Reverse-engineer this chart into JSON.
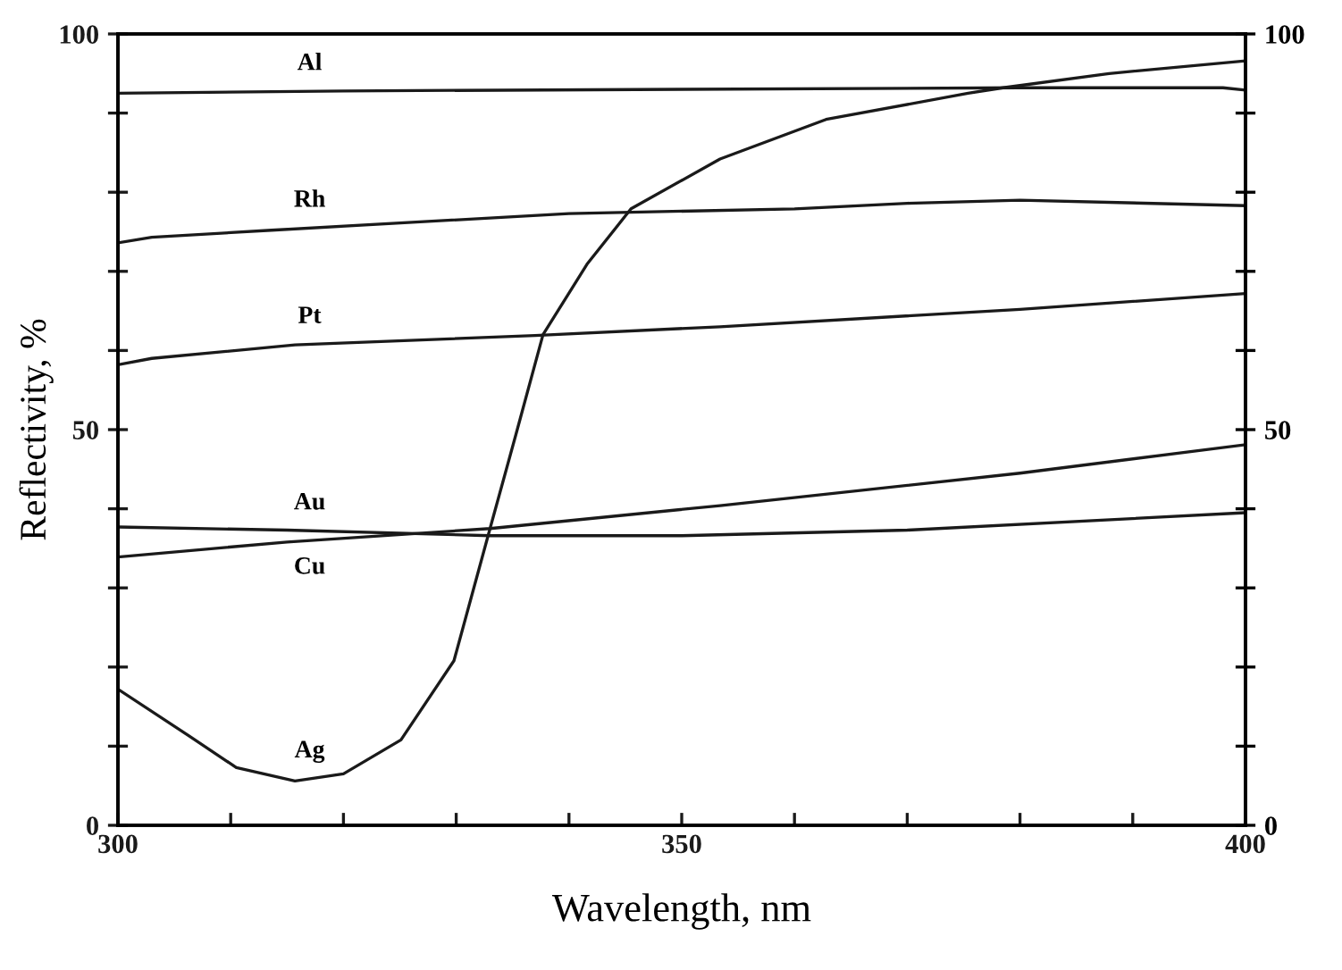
{
  "chart_data": {
    "type": "line",
    "xlabel": "Wavelength, nm",
    "ylabel": "Reflectivity, %",
    "xlim": [
      300,
      400
    ],
    "ylim": [
      0,
      100
    ],
    "y2lim": [
      0,
      100
    ],
    "xticks": [
      300,
      {
        "value": 310,
        "label": null
      },
      {
        "value": 320,
        "label": null
      },
      {
        "value": 330,
        "label": null
      },
      {
        "value": 340,
        "label": null
      },
      350,
      {
        "value": 360,
        "label": null
      },
      {
        "value": 370,
        "label": null
      },
      {
        "value": 380,
        "label": null
      },
      {
        "value": 390,
        "label": null
      },
      {
        "value": 400,
        "label": "400"
      }
    ],
    "yticks": [
      0,
      {
        "value": 10,
        "label": null
      },
      {
        "value": 20,
        "label": null
      },
      {
        "value": 30,
        "label": null
      },
      {
        "value": 40,
        "label": null
      },
      50,
      {
        "value": 60,
        "label": null
      },
      {
        "value": 70,
        "label": null
      },
      {
        "value": 80,
        "label": null
      },
      {
        "value": 90,
        "label": null
      },
      100
    ],
    "y2ticks": [
      0,
      {
        "value": 10,
        "label": null
      },
      {
        "value": 20,
        "label": null
      },
      {
        "value": 30,
        "label": null
      },
      {
        "value": 40,
        "label": null
      },
      50,
      {
        "value": 60,
        "label": null
      },
      {
        "value": 70,
        "label": null
      },
      {
        "value": 80,
        "label": null
      },
      {
        "value": 90,
        "label": null
      },
      100
    ],
    "grid": false,
    "legend": false,
    "marker": "none",
    "line_style": "solid",
    "series": [
      {
        "name": "Al",
        "color": "#1a1a1a",
        "x": [
          300,
          320,
          350,
          380,
          398,
          400
        ],
        "values": [
          92.5,
          92.8,
          93.0,
          93.2,
          93.2,
          92.9
        ]
      },
      {
        "name": "Rh",
        "color": "#1a1a1a",
        "x": [
          300,
          303,
          313.6,
          340,
          360,
          370,
          380,
          400
        ],
        "values": [
          73.6,
          74.3,
          75.2,
          77.3,
          77.9,
          78.6,
          79.0,
          78.3
        ]
      },
      {
        "name": "Pt",
        "color": "#1a1a1a",
        "x": [
          300,
          303,
          315.7,
          337,
          353.4,
          380,
          400
        ],
        "values": [
          58.2,
          59,
          60.7,
          61.9,
          63.0,
          65.2,
          67.2
        ]
      },
      {
        "name": "Au",
        "color": "#1a1a1a",
        "x": [
          300,
          315,
          333,
          350,
          370,
          400
        ],
        "values": [
          37.7,
          37.3,
          36.6,
          36.6,
          37.3,
          39.5
        ]
      },
      {
        "name": "Cu",
        "color": "#1a1a1a",
        "x": [
          300,
          315,
          333,
          353.4,
          380,
          400
        ],
        "values": [
          33.9,
          35.8,
          37.5,
          40.4,
          44.5,
          48.1
        ]
      },
      {
        "name": "Ag",
        "color": "#1a1a1a",
        "x": [
          300,
          306.3,
          310.5,
          315.7,
          320,
          325.1,
          329.8,
          333,
          335.3,
          337.7,
          341.6,
          345.5,
          353.4,
          362.8,
          375.4,
          378.5,
          387.9,
          400
        ],
        "values": [
          17.2,
          11.3,
          7.3,
          5.6,
          6.5,
          10.8,
          20.8,
          37.5,
          49.4,
          62.0,
          70.9,
          77.9,
          84.2,
          89.2,
          92.5,
          93.2,
          95.0,
          96.6
        ]
      }
    ]
  }
}
